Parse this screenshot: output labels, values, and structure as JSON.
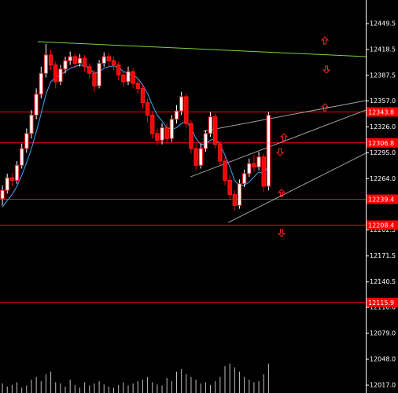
{
  "chart_data": {
    "type": "candlestick",
    "xlim": [
      -0.5,
      75.1
    ],
    "ylim": [
      12007.6,
      12477.7
    ],
    "yticks": [
      12449.5,
      12418.5,
      12387.5,
      {
        "value": 12357,
        "label": "12357.0"
      },
      {
        "value": 12326,
        "label": "12326.0"
      },
      {
        "value": 12295,
        "label": "12295.0"
      },
      {
        "value": 12264,
        "label": "12264.0"
      },
      12202.5,
      12171.5,
      12140.5,
      {
        "value": 12110,
        "label": "12110.0"
      },
      {
        "value": 12079,
        "label": "12079.0"
      },
      {
        "value": 12048,
        "label": "12048.0"
      },
      {
        "value": 12017,
        "label": "12017.0"
      }
    ],
    "up_color": "#ffffff",
    "down_color": "#ff0000",
    "open": [
      12240,
      12250,
      12265,
      12262,
      12280,
      12300,
      12318,
      12340,
      12365,
      12390,
      12412,
      12400,
      12380,
      12395,
      12405,
      12410,
      12402,
      12408,
      12398,
      12390,
      12375,
      12402,
      12410,
      12405,
      12400,
      12388,
      12380,
      12392,
      12378,
      12372,
      12355,
      12340,
      12318,
      12310,
      12325,
      12312,
      12335,
      12345,
      12362,
      12330,
      12300,
      12280,
      12300,
      12318,
      12338,
      12305,
      12285,
      12262,
      12245,
      12232,
      12258,
      12270,
      12282,
      12278,
      12290,
      12255
    ],
    "high": [
      12256,
      12270,
      12271,
      12285,
      12306,
      12324,
      12346,
      12372,
      12398,
      12425,
      12418,
      12404,
      12400,
      12410,
      12416,
      12414,
      12413,
      12412,
      12402,
      12394,
      12406,
      12415,
      12414,
      12410,
      12404,
      12392,
      12398,
      12396,
      12384,
      12376,
      12360,
      12345,
      12324,
      12330,
      12330,
      12340,
      12352,
      12368,
      12366,
      12334,
      12305,
      12306,
      12322,
      12344,
      12342,
      12310,
      12290,
      12268,
      12250,
      12263,
      12275,
      12288,
      12292,
      12296,
      12294,
      12344
    ],
    "low": [
      12232,
      12246,
      12255,
      12258,
      12276,
      12295,
      12312,
      12335,
      12360,
      12385,
      12394,
      12372,
      12376,
      12390,
      12400,
      12396,
      12398,
      12392,
      12384,
      12368,
      12372,
      12398,
      12398,
      12394,
      12382,
      12374,
      12376,
      12372,
      12366,
      12348,
      12332,
      12312,
      12304,
      12305,
      12306,
      12308,
      12330,
      12340,
      12325,
      12294,
      12274,
      12276,
      12296,
      12314,
      12300,
      12280,
      12256,
      12238,
      12226,
      12228,
      12254,
      12266,
      12272,
      12274,
      12248,
      12250
    ],
    "close": [
      12250,
      12265,
      12262,
      12280,
      12300,
      12318,
      12340,
      12365,
      12390,
      12412,
      12400,
      12380,
      12395,
      12405,
      12410,
      12402,
      12408,
      12398,
      12390,
      12375,
      12402,
      12410,
      12405,
      12400,
      12388,
      12380,
      12392,
      12378,
      12372,
      12355,
      12340,
      12318,
      12310,
      12325,
      12312,
      12335,
      12345,
      12362,
      12330,
      12300,
      12280,
      12300,
      12318,
      12338,
      12305,
      12285,
      12262,
      12245,
      12232,
      12258,
      12270,
      12282,
      12278,
      12290,
      12255,
      12340
    ],
    "ma": {
      "color": "#3fa9f5",
      "values": [
        12230,
        12238,
        12245,
        12255,
        12268,
        12283,
        12300,
        12320,
        12342,
        12365,
        12380,
        12385,
        12388,
        12392,
        12396,
        12398,
        12400,
        12399,
        12396,
        12390,
        12392,
        12396,
        12398,
        12399,
        12397,
        12392,
        12390,
        12388,
        12384,
        12376,
        12366,
        12352,
        12340,
        12333,
        12325,
        12323,
        12325,
        12330,
        12332,
        12325,
        12312,
        12305,
        12305,
        12310,
        12312,
        12305,
        12292,
        12278,
        12262,
        12255,
        12256,
        12260,
        12266,
        12272,
        12270,
        12280
      ]
    },
    "volume": {
      "color": "#c0c0c0",
      "lim": [
        0,
        100
      ],
      "values": [
        18,
        12,
        15,
        20,
        10,
        14,
        25,
        30,
        22,
        35,
        40,
        20,
        18,
        12,
        25,
        15,
        10,
        20,
        14,
        18,
        22,
        16,
        12,
        10,
        15,
        20,
        14,
        18,
        22,
        25,
        30,
        20,
        16,
        14,
        28,
        22,
        40,
        45,
        35,
        30,
        25,
        18,
        20,
        15,
        22,
        30,
        50,
        55,
        48,
        40,
        30,
        25,
        20,
        22,
        35,
        55
      ]
    },
    "levels": {
      "color": "#ff0000",
      "values": [
        12343.8,
        12306.8,
        12239.4,
        12208.4,
        12115.9
      ],
      "value_labels": [
        "12343.8",
        "12306.8",
        "12239.4",
        "12208.4",
        "12115.9"
      ]
    },
    "trendlines": [
      {
        "color": "#7fd43c",
        "x": [
          7.3,
          75.1
        ],
        "y": [
          12427.9,
          12410
        ]
      },
      {
        "color": "#a0a0a0",
        "x": [
          41.5,
          75.1
        ],
        "y": [
          12320.7,
          12357.4
        ]
      },
      {
        "color": "#a0a0a0",
        "x": [
          38.9,
          75.1
        ],
        "y": [
          12266.2,
          12346
        ]
      },
      {
        "color": "#a0a0a0",
        "x": [
          46.7,
          75.1
        ],
        "y": [
          12211.6,
          12294.4
        ]
      }
    ]
  }
}
